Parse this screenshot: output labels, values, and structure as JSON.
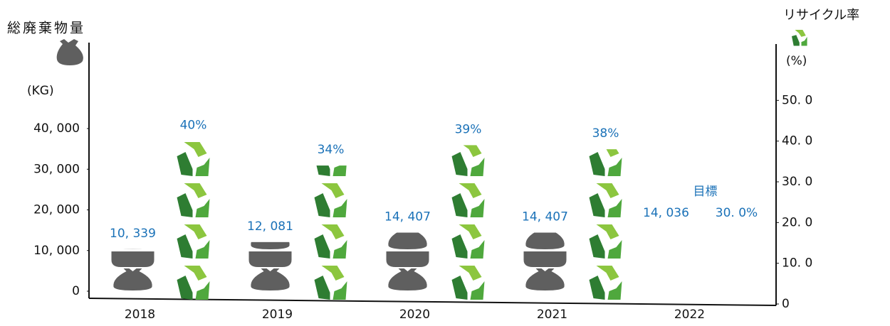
{
  "chart_data": {
    "type": "pictograph",
    "y_title": "総廃棄物量",
    "y_unit": "(KG)",
    "y2_title": "リサイクル率",
    "y2_unit": "(%)",
    "annotation": "目標",
    "categories": [
      "2018",
      "2019",
      "2020",
      "2021",
      "2022"
    ],
    "pictograph": [
      true,
      true,
      true,
      true,
      false
    ],
    "series": [
      {
        "values": [
          10339,
          12081,
          14407,
          14407,
          14036
        ],
        "value_labels": [
          "10, 339",
          "12, 081",
          "14, 407",
          "14, 407",
          "14, 036"
        ],
        "color": "#5f5f5f"
      },
      {
        "values": [
          40,
          34,
          39,
          38,
          30
        ],
        "value_labels": [
          "40%",
          "34%",
          "39%",
          "38%",
          "30. 0%"
        ],
        "color": "#6bb33c",
        "axis": "y2"
      }
    ],
    "ylim": [
      0,
      60000
    ],
    "yticks": [
      0,
      {
        "value": 10000,
        "label": "10, 000"
      },
      {
        "value": 20000,
        "label": "20, 000"
      },
      {
        "value": 30000,
        "label": "30, 000"
      },
      {
        "value": 40000,
        "label": "40, 000"
      }
    ],
    "y2lim": [
      0,
      60
    ],
    "y2ticks": [
      0,
      {
        "value": 10,
        "label": "10. 0"
      },
      {
        "value": 20,
        "label": "20. 0"
      },
      {
        "value": 30,
        "label": "30. 0"
      },
      {
        "value": 40,
        "label": "40. 0"
      },
      {
        "value": 50,
        "label": "50. 0"
      }
    ]
  }
}
